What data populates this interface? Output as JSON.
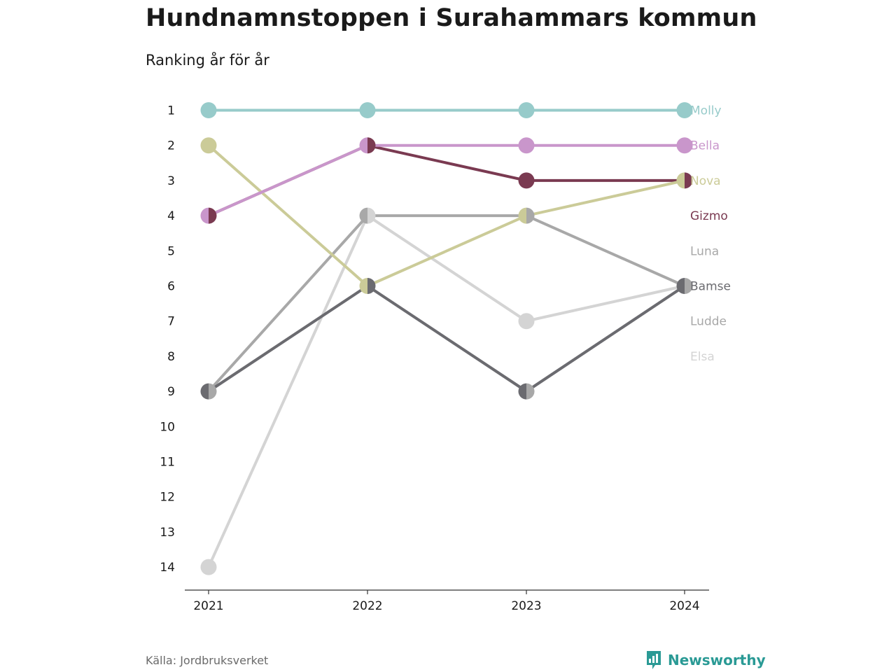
{
  "header": {
    "title": "Hundnamnstoppen i Surahammars kommun",
    "subtitle": "Ranking år för år"
  },
  "footer": {
    "source": "Källa: Jordbruksverket",
    "brand": "Newsworthy",
    "brand_icon": "bar-chart-speech-bubble-icon"
  },
  "colors": {
    "Molly": "#97cbca",
    "Bella": "#c996cb",
    "Nova": "#cbcb98",
    "Gizmo": "#7a3a51",
    "Luna": "#a8a8a8",
    "Bamse": "#6b6b70",
    "Ludde": "#a8a8a8",
    "Elsa": "#d4d4d4",
    "brand": "#2a9a95",
    "axis": "#333333"
  },
  "chart_data": {
    "type": "line",
    "title": "Hundnamnstoppen i Surahammars kommun",
    "subtitle": "Ranking år för år",
    "x": [
      "2021",
      "2022",
      "2023",
      "2024"
    ],
    "y_ticks": [
      1,
      2,
      3,
      4,
      5,
      6,
      7,
      8,
      9,
      10,
      11,
      12,
      13,
      14
    ],
    "ylim": [
      1,
      14
    ],
    "y_reversed": true,
    "grid": false,
    "series": [
      {
        "name": "Elsa",
        "values": [
          14,
          4,
          7,
          6
        ]
      },
      {
        "name": "Ludde",
        "values": [
          9,
          4,
          4,
          6
        ]
      },
      {
        "name": "Luna",
        "values": [
          9,
          6,
          9,
          6
        ]
      },
      {
        "name": "Bamse",
        "values": [
          9,
          6,
          9,
          6
        ]
      },
      {
        "name": "Gizmo",
        "values": [
          4,
          2,
          3,
          3
        ]
      },
      {
        "name": "Nova",
        "values": [
          2,
          6,
          4,
          3
        ]
      },
      {
        "name": "Bella",
        "values": [
          4,
          2,
          2,
          2
        ]
      },
      {
        "name": "Molly",
        "values": [
          1,
          1,
          1,
          1
        ]
      }
    ],
    "end_labels": [
      {
        "name": "Molly",
        "rank": 1
      },
      {
        "name": "Bella",
        "rank": 2
      },
      {
        "name": "Nova",
        "rank": 3
      },
      {
        "name": "Gizmo",
        "rank": 4
      },
      {
        "name": "Luna",
        "rank": 5
      },
      {
        "name": "Bamse",
        "rank": 6
      },
      {
        "name": "Ludde",
        "rank": 7
      },
      {
        "name": "Elsa",
        "rank": 8
      }
    ]
  }
}
